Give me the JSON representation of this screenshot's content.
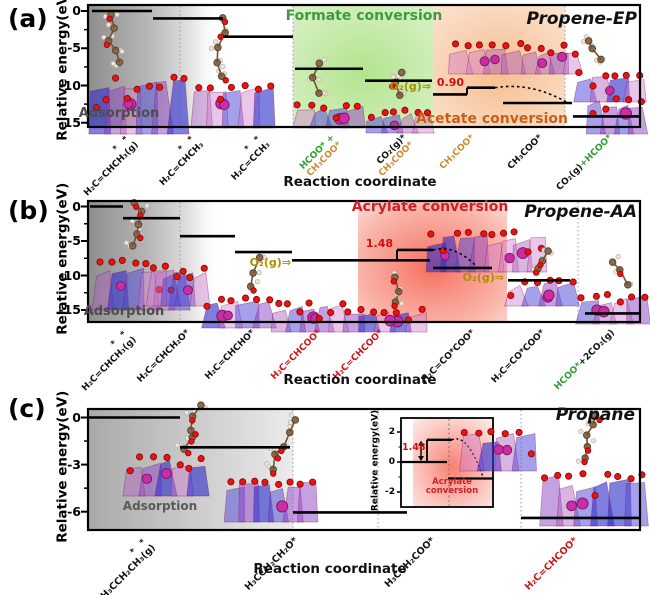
{
  "figure": {
    "background": "#ffffff",
    "xlabel_shared": "Reaction coordinate"
  },
  "chart_data": [
    {
      "type": "energy-step",
      "letter": "(a)",
      "title": "Propene-EP",
      "ylabel": "Relative energy(eV)",
      "xlabel": "Reaction coordinate",
      "ytick_labels": [
        "0",
        "-5",
        "-10",
        "-15"
      ],
      "ytick_values": [
        0,
        -5,
        -10,
        -15
      ],
      "ylim": [
        -15.7,
        0.8
      ],
      "regions": [
        {
          "label": "Adsorption",
          "color": "#4d4d4d",
          "kind": "gray"
        },
        {
          "label": "Formate conversion",
          "color": "#3d9b3d",
          "kind": "green"
        },
        {
          "label": "Acetate conversion",
          "color": "#c95f16",
          "kind": "orange"
        }
      ],
      "annotations": [
        {
          "text": "O₂(g)⇒",
          "color": "#b08c00"
        }
      ],
      "barrier": {
        "label": "0.90",
        "color": "#cc1111",
        "step_x": 467,
        "top_x": [
          467,
          495
        ],
        "from_energy": -11.2,
        "top_energy": -10.3,
        "curve_to": {
          "x": 568,
          "energy": -12.35
        }
      },
      "states": [
        {
          "pre": "* *",
          "parts": [
            {
              "text": "H₂C=CHCH₃(g)",
              "color": "#111111"
            }
          ],
          "energy": 0,
          "x": [
            92,
            152
          ],
          "anchor": 127
        },
        {
          "pre": "* *",
          "parts": [
            {
              "text": "H₂C=CHCH₃",
              "color": "#111111"
            }
          ],
          "energy": -1.0,
          "x": [
            153,
            223
          ],
          "anchor": 192
        },
        {
          "pre": "* *",
          "parts": [
            {
              "text": "H₂C=CCH₃",
              "color": "#111111"
            }
          ],
          "energy": -3.45,
          "x": [
            223,
            293
          ],
          "anchor": 258
        },
        {
          "parts": [
            {
              "text": "HCOO* +",
              "color": "#2e9e2e"
            },
            {
              "text": "CH₃COO*",
              "color": "#d08a2e"
            }
          ],
          "energy": -7.75,
          "x": [
            295,
            363
          ],
          "anchor": 330
        },
        {
          "parts": [
            {
              "text": "CO₂(g)*",
              "color": "#111111"
            },
            {
              "text": "CH₃COO*",
              "color": "#d08a2e"
            }
          ],
          "energy": -9.35,
          "x": [
            365,
            432
          ],
          "anchor": 402
        },
        {
          "parts": [
            {
              "text": "CH₃COO*",
              "color": "#d08a2e"
            }
          ],
          "energy": -11.2,
          "x": [
            433,
            467
          ],
          "anchor": 470
        },
        {
          "parts": [
            {
              "text": "CH₃COO*",
              "color": "#111111"
            }
          ],
          "energy": -12.35,
          "x": [
            503,
            572
          ],
          "anchor": 538
        },
        {
          "inline": true,
          "parts": [
            {
              "text": "CO₂(g)",
              "color": "#111111"
            },
            {
              "text": "+HCOO*",
              "color": "#2e9e2e"
            }
          ],
          "energy": -14.15,
          "x": [
            573,
            640
          ],
          "anchor": 608
        }
      ]
    },
    {
      "type": "energy-step",
      "letter": "(b)",
      "title": "Propene-AA",
      "ylabel": "Relative energy(eV)",
      "xlabel": "Reaction coordinate",
      "ytick_labels": [
        "0",
        "-5",
        "-10",
        "-15"
      ],
      "ytick_values": [
        0,
        -5,
        -10,
        -15
      ],
      "ylim": [
        -16.8,
        0.7
      ],
      "regions": [
        {
          "label": "Adsorption",
          "color": "#4d4d4d",
          "kind": "gray"
        },
        {
          "label": "Acrylate conversion",
          "color": "#cc2127",
          "kind": "red"
        }
      ],
      "annotations": [
        {
          "text": "O₂(g)⇒",
          "color": "#b08c00"
        },
        {
          "text": "O₂(g)⇒",
          "color": "#b08c00"
        }
      ],
      "barrier": {
        "label": "1.48",
        "color": "#cc1111",
        "step_x": 397,
        "top_x": [
          397,
          433
        ],
        "from_energy": -7.8,
        "top_energy": -6.3,
        "curve_to": {
          "x": 478,
          "energy": -8.9
        }
      },
      "states": [
        {
          "pre": "* *",
          "parts": [
            {
              "text": "H₂C=CHCH₃(g)",
              "color": "#111111"
            }
          ],
          "energy": 0,
          "x": [
            90,
            123
          ],
          "anchor": 125
        },
        {
          "parts": [
            {
              "text": "H₂C=CHCH₂O*",
              "color": "#111111"
            }
          ],
          "energy": -1.7,
          "x": [
            123,
            180
          ],
          "anchor": 185
        },
        {
          "parts": [
            {
              "text": "H₂C=CHCHO*",
              "color": "#111111"
            }
          ],
          "energy": -4.3,
          "x": [
            180,
            235
          ],
          "anchor": 250
        },
        {
          "parts": [
            {
              "text": "H₂C=CHCOO*",
              "color": "#cc1518"
            }
          ],
          "energy": -6.6,
          "x": [
            235,
            292
          ],
          "anchor": 316
        },
        {
          "parts": [
            {
              "text": "H₂C=CHCOO*",
              "color": "#cc1518"
            }
          ],
          "energy": -7.8,
          "x": [
            292,
            430
          ],
          "anchor": 378
        },
        {
          "parts": [
            {
              "text": "H₂C=CO*COO*",
              "color": "#111111"
            }
          ],
          "energy": -8.9,
          "x": [
            433,
            492
          ],
          "anchor": 470
        },
        {
          "parts": [
            {
              "text": "H₂C=CO*COO*",
              "color": "#111111"
            }
          ],
          "energy": -10.7,
          "x": [
            508,
            570
          ],
          "anchor": 540
        },
        {
          "inline": true,
          "parts": [
            {
              "text": "HCOO*",
              "color": "#2e9e2e"
            },
            {
              "text": "+2CO₂(g)",
              "color": "#111111"
            }
          ],
          "energy": -15.5,
          "x": [
            585,
            640
          ],
          "anchor": 610
        }
      ]
    },
    {
      "type": "energy-step",
      "letter": "(c)",
      "title": "Propane",
      "ylabel": "Relative energy(eV)",
      "xlabel": "Reaction coordinate",
      "ytick_labels": [
        "0",
        "-3",
        "-6"
      ],
      "ytick_values": [
        0,
        -3,
        -6
      ],
      "ylim": [
        -7.2,
        0.6
      ],
      "regions": [
        {
          "label": "Adsorption",
          "color": "#5a5a5a",
          "kind": "grayC"
        }
      ],
      "annotations": [],
      "states": [
        {
          "pre": "* *",
          "parts": [
            {
              "text": "H₃CCH₂CH₃(g)",
              "color": "#111111"
            }
          ],
          "energy": 0,
          "x": [
            88,
            180
          ],
          "anchor": 144
        },
        {
          "parts": [
            {
              "text": "H₃CCH₂CH₂O*",
              "color": "#111111"
            }
          ],
          "energy": -1.9,
          "x": [
            180,
            290
          ],
          "anchor": 293
        },
        {
          "parts": [
            {
              "text": "H₃CCH₂COO*",
              "color": "#111111"
            }
          ],
          "energy": -6.05,
          "x": [
            293,
            407
          ],
          "anchor": 430
        },
        {
          "parts": [
            {
              "text": "H₂C=CHCOO*",
              "color": "#cc1518"
            }
          ],
          "energy": -6.4,
          "x": [
            521,
            640
          ],
          "anchor": 573
        }
      ],
      "inset": {
        "ylabel": "Relative energy(eV)",
        "ytick_labels": [
          "2",
          "0",
          "-2"
        ],
        "ytick_values": [
          2,
          0,
          -2
        ],
        "region_label": "Acrylate conversion",
        "region_color": "#cc2127",
        "barrier": {
          "label": "1.48",
          "color": "#cc1111",
          "arrow_x": 421,
          "step_x": 427,
          "top_x": [
            427,
            452
          ],
          "from_energy": 0,
          "top_energy": 1.48,
          "curve_to": {
            "x": 483,
            "energy": -1.0
          }
        },
        "levels": [
          {
            "energy": 0,
            "x": [
              401,
              447
            ]
          },
          {
            "energy": -1.1,
            "x": [
              448,
              493
            ]
          }
        ]
      }
    }
  ]
}
